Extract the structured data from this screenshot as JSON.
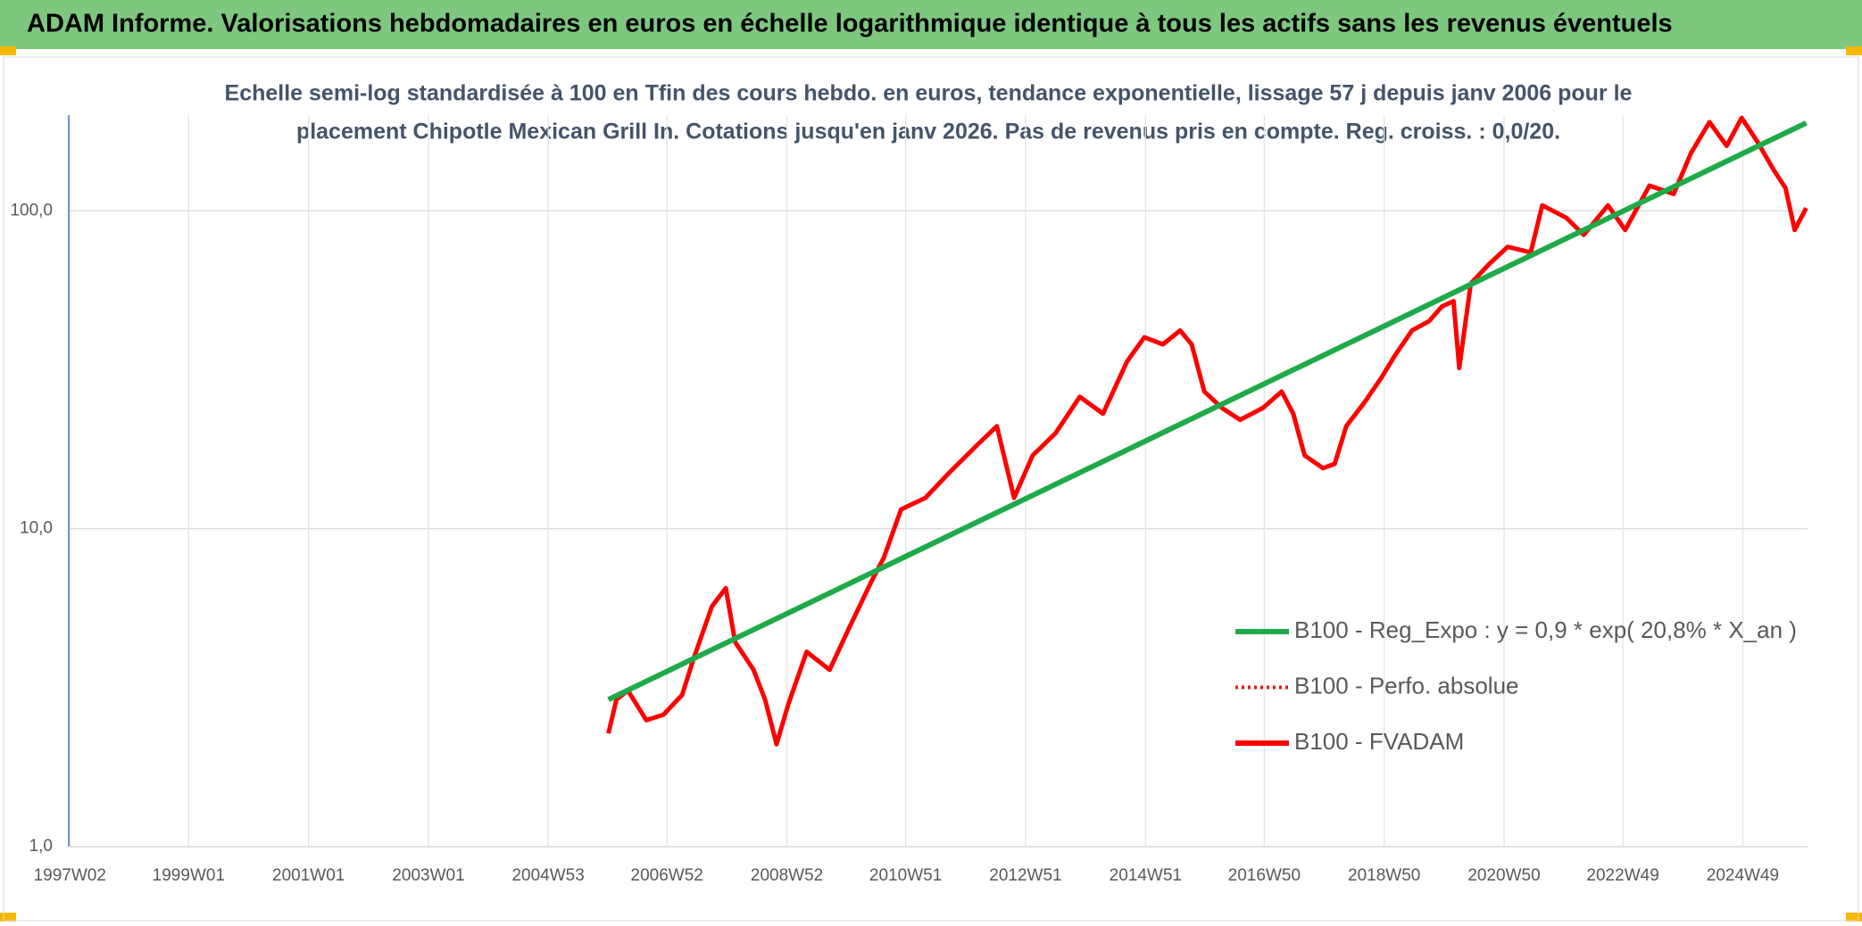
{
  "header": {
    "title": "ADAM Informe. Valorisations hebdomadaires en euros en échelle logarithmique identique à tous les actifs sans les revenus éventuels"
  },
  "chart_data": {
    "type": "line",
    "subtitle": [
      "Echelle semi-log standardisée à 100 en Tfin des cours hebdo. en euros, tendance exponentielle, lissage 57 j depuis janv 2006 pour le",
      "placement Chipotle Mexican Grill In. Cotations jusqu'en janv 2026. Pas de revenus pris en compte. Reg. croiss. : 0,0/20."
    ],
    "log_scale": true,
    "grid": true,
    "legend": "lower-right",
    "xlim": [
      "1997W01",
      "2026W01"
    ],
    "xticks": [
      "1997W02",
      "1999W01",
      "2001W01",
      "2003W01",
      "2004W53",
      "2006W52",
      "2008W52",
      "2010W51",
      "2012W51",
      "2014W51",
      "2016W50",
      "2018W50",
      "2020W50",
      "2022W49",
      "2024W49"
    ],
    "ylim": [
      1,
      200
    ],
    "yticks": [
      {
        "value": 1,
        "label": "1,0"
      },
      {
        "value": 10,
        "label": "10,0"
      },
      {
        "value": 100,
        "label": "100,0"
      }
    ],
    "x": [
      "2006W01",
      "2006W08",
      "2006W18",
      "2006W34",
      "2006W49",
      "2007W13",
      "2007W23",
      "2007W39",
      "2007W51",
      "2008W07",
      "2008W23",
      "2008W33",
      "2008W43",
      "2009W01",
      "2009W17",
      "2009W37",
      "2010W01",
      "2010W21",
      "2010W32",
      "2010W47",
      "2011W16",
      "2011W36",
      "2012W10",
      "2012W26",
      "2012W41",
      "2013W05",
      "2013W25",
      "2013W46",
      "2014W14",
      "2014W35",
      "2014W50",
      "2015W14",
      "2015W29",
      "2015W39",
      "2015W50",
      "2016W13",
      "2016W29",
      "2016W49",
      "2017W13",
      "2017W23",
      "2017W33",
      "2017W49",
      "2018W07",
      "2018W17",
      "2018W33",
      "2018W48",
      "2019W07",
      "2019W22",
      "2019W37",
      "2019W48",
      "2020W06",
      "2020W11",
      "2020W21",
      "2020W37",
      "2021W01",
      "2021W21",
      "2021W31",
      "2021W52",
      "2022W15",
      "2022W36",
      "2022W51",
      "2023W20",
      "2023W41",
      "2024W04",
      "2024W20",
      "2024W35",
      "2024W48",
      "2025W09",
      "2025W24",
      "2025W34",
      "2025W42",
      "2025W52"
    ],
    "series": [
      {
        "name": "B100 - Reg_Expo : y = 0,9 * exp( 20,8% *  X_an )",
        "color": "#1faa4a",
        "style": "solid",
        "x": [
          "2006W01",
          "2025W52"
        ],
        "values": [
          2.9,
          189
        ]
      },
      {
        "name": "B100 - Perfo. absolue",
        "color": "#e3191b",
        "style": "dotted",
        "values": [
          2.27,
          2.9,
          3.1,
          2.5,
          2.6,
          3.0,
          3.9,
          5.7,
          6.5,
          4.4,
          3.6,
          2.9,
          2.1,
          2.8,
          4.1,
          3.6,
          4.8,
          6.8,
          8.1,
          11.5,
          12.5,
          14.9,
          18.5,
          21,
          12.5,
          17,
          20,
          26,
          23,
          33.6,
          40,
          38,
          42,
          38,
          27,
          24,
          22,
          24,
          27,
          23,
          17,
          15.5,
          16,
          21,
          25,
          30,
          35,
          42,
          45,
          50,
          52,
          32,
          59,
          68,
          77,
          74,
          104,
          95,
          84,
          104,
          87,
          120,
          113,
          152,
          190,
          160,
          196,
          166,
          134,
          118,
          87,
          102
        ]
      },
      {
        "name": "B100 - FVADAM",
        "color": "#ff0000",
        "style": "solid",
        "values": [
          2.27,
          2.9,
          3.1,
          2.5,
          2.6,
          3.0,
          3.9,
          5.7,
          6.5,
          4.4,
          3.6,
          2.9,
          2.1,
          2.8,
          4.1,
          3.6,
          4.8,
          6.8,
          8.1,
          11.5,
          12.5,
          14.9,
          18.5,
          21,
          12.5,
          17,
          20,
          26,
          23,
          33.6,
          40,
          38,
          42,
          38,
          27,
          24,
          22,
          24,
          27,
          23,
          17,
          15.5,
          16,
          21,
          25,
          30,
          35,
          42,
          45,
          50,
          52,
          32,
          59,
          68,
          77,
          74,
          104,
          95,
          84,
          104,
          87,
          120,
          113,
          152,
          190,
          160,
          196,
          166,
          134,
          118,
          87,
          102
        ]
      }
    ]
  }
}
